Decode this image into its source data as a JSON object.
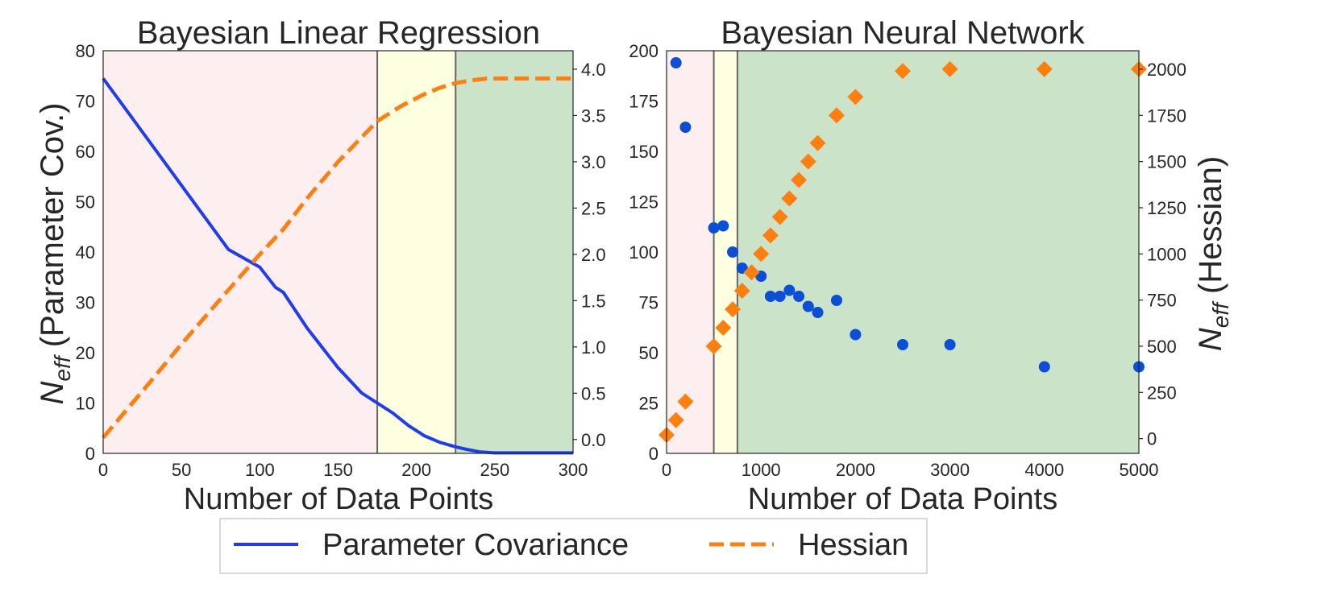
{
  "chart_data": [
    {
      "type": "line",
      "title": "Bayesian Linear Regression",
      "xlabel": "Number of Data Points",
      "ylabel_left": "N_eff (Parameter Cov.)",
      "xlim": [
        0,
        300
      ],
      "ylim_left": [
        0,
        80
      ],
      "ylim_right": [
        -0.15,
        4.2
      ],
      "x_ticks": [
        "0",
        "50",
        "100",
        "150",
        "200",
        "250",
        "300"
      ],
      "y_ticks_left": [
        "0",
        "10",
        "20",
        "30",
        "40",
        "50",
        "60",
        "70",
        "80"
      ],
      "y_ticks_right": [
        "0.0",
        "0.5",
        "1.0",
        "1.5",
        "2.0",
        "2.5",
        "3.0",
        "3.5",
        "4.0"
      ],
      "regions": [
        {
          "x0": 0,
          "x1": 175,
          "color": "#fdeef0"
        },
        {
          "x0": 175,
          "x1": 225,
          "color": "#fefee0"
        },
        {
          "x0": 225,
          "x1": 300,
          "color": "#cbe3c9"
        }
      ],
      "boundaries": [
        175,
        225
      ],
      "series": [
        {
          "name": "Parameter Covariance",
          "axis": "left",
          "style": "solid",
          "color": "#1f3cf0",
          "x": [
            0,
            20,
            40,
            60,
            80,
            100,
            110,
            115,
            130,
            150,
            165,
            175,
            185,
            195,
            205,
            215,
            225,
            232,
            240,
            250,
            300
          ],
          "y": [
            74.5,
            66,
            57.5,
            49,
            40.5,
            37,
            33,
            32,
            25,
            17,
            12,
            10,
            8,
            5.5,
            3.5,
            2.2,
            1.3,
            0.8,
            0.3,
            0.1,
            0.1
          ]
        },
        {
          "name": "Hessian",
          "axis": "right",
          "style": "dashed",
          "color": "#ff7f0e",
          "x": [
            0,
            25,
            50,
            75,
            100,
            115,
            130,
            150,
            175,
            190,
            205,
            215,
            225,
            235,
            245,
            300
          ],
          "y": [
            0.02,
            0.52,
            1.03,
            1.52,
            2.0,
            2.27,
            2.6,
            3.0,
            3.44,
            3.6,
            3.73,
            3.8,
            3.85,
            3.88,
            3.9,
            3.9
          ]
        }
      ]
    },
    {
      "type": "scatter",
      "title": "Bayesian Neural Network",
      "xlabel": "Number of Data Points",
      "ylabel_right": "N_eff (Hessian)",
      "xlim": [
        0,
        5000
      ],
      "ylim_left": [
        0,
        200
      ],
      "ylim_right": [
        -80,
        2100
      ],
      "x_ticks": [
        "0",
        "1000",
        "2000",
        "3000",
        "4000",
        "5000"
      ],
      "y_ticks_left": [
        "0",
        "25",
        "50",
        "75",
        "100",
        "125",
        "150",
        "175",
        "200"
      ],
      "y_ticks_right": [
        "0",
        "250",
        "500",
        "750",
        "1000",
        "1250",
        "1500",
        "1750",
        "2000"
      ],
      "regions": [
        {
          "x0": 0,
          "x1": 500,
          "color": "#fdeef0"
        },
        {
          "x0": 500,
          "x1": 750,
          "color": "#fefee0"
        },
        {
          "x0": 750,
          "x1": 5000,
          "color": "#cbe3c9"
        }
      ],
      "boundaries": [
        500,
        750
      ],
      "series": [
        {
          "name": "Parameter Covariance",
          "axis": "left",
          "marker": "circle",
          "color": "#1f3cf0",
          "x": [
            100,
            200,
            500,
            600,
            700,
            800,
            1000,
            1100,
            1200,
            1300,
            1400,
            1500,
            1600,
            1800,
            2000,
            2500,
            3000,
            4000,
            5000
          ],
          "y": [
            194,
            162,
            112,
            113,
            100,
            92,
            88,
            78,
            78,
            81,
            78,
            73,
            70,
            76,
            59,
            54,
            54,
            43,
            43
          ]
        },
        {
          "name": "Hessian",
          "axis": "right",
          "marker": "diamond",
          "color": "#ff7f0e",
          "x": [
            0,
            100,
            200,
            500,
            600,
            700,
            800,
            900,
            1000,
            1100,
            1200,
            1300,
            1400,
            1500,
            1600,
            1800,
            2000,
            2500,
            3000,
            4000,
            5000
          ],
          "y": [
            20,
            100,
            200,
            500,
            600,
            700,
            800,
            900,
            1000,
            1100,
            1200,
            1300,
            1400,
            1500,
            1600,
            1750,
            1850,
            1990,
            2000,
            2000,
            2000
          ]
        }
      ]
    }
  ],
  "legend": {
    "items": [
      {
        "label": "Parameter Covariance",
        "style": "solid",
        "color": "#1f3cf0"
      },
      {
        "label": "Hessian",
        "style": "dashed",
        "color": "#ff7f0e"
      }
    ]
  }
}
